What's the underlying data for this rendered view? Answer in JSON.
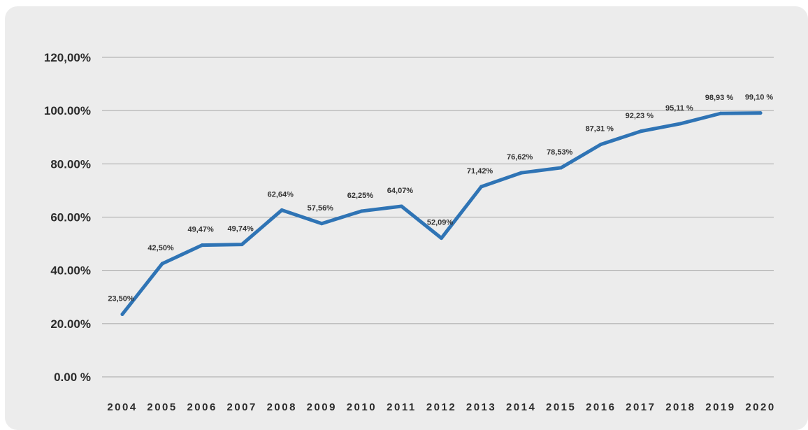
{
  "chart_data": {
    "type": "line",
    "title": "",
    "xlabel": "",
    "ylabel": "",
    "ylim": [
      0,
      120
    ],
    "grid": true,
    "legend": "none",
    "colors": {
      "series": "#2f74b5",
      "background": "#ececec",
      "grid": "#a6a6a6"
    },
    "y_ticks": [
      {
        "value": 0,
        "label": "0.00 %"
      },
      {
        "value": 20,
        "label": "20.00%"
      },
      {
        "value": 40,
        "label": "40.00%"
      },
      {
        "value": 60,
        "label": "60.00%"
      },
      {
        "value": 80,
        "label": "80.00%"
      },
      {
        "value": 100,
        "label": "100.00%"
      },
      {
        "value": 120,
        "label": "120,00%"
      }
    ],
    "x": [
      "2004",
      "2005",
      "2006",
      "2007",
      "2008",
      "2009",
      "2010",
      "2011",
      "2012",
      "2013",
      "2014",
      "2015",
      "2016",
      "2017",
      "2018",
      "2019",
      "2020"
    ],
    "series": [
      {
        "values": [
          23.5,
          42.5,
          49.47,
          49.74,
          62.64,
          57.56,
          62.25,
          64.07,
          52.09,
          71.42,
          76.62,
          78.53,
          87.31,
          92.23,
          95.11,
          98.93,
          99.1
        ],
        "labels": [
          "23,50%",
          "42,50%",
          "49,47%",
          "49,74%",
          "62,64%",
          "57,56%",
          "62,25%",
          "64,07%",
          "52,09%",
          "71,42%",
          "76,62%",
          "78,53%",
          "87,31 %",
          "92,23 %",
          "95,11 %",
          "98,93 %",
          "99,10 %"
        ]
      }
    ]
  }
}
